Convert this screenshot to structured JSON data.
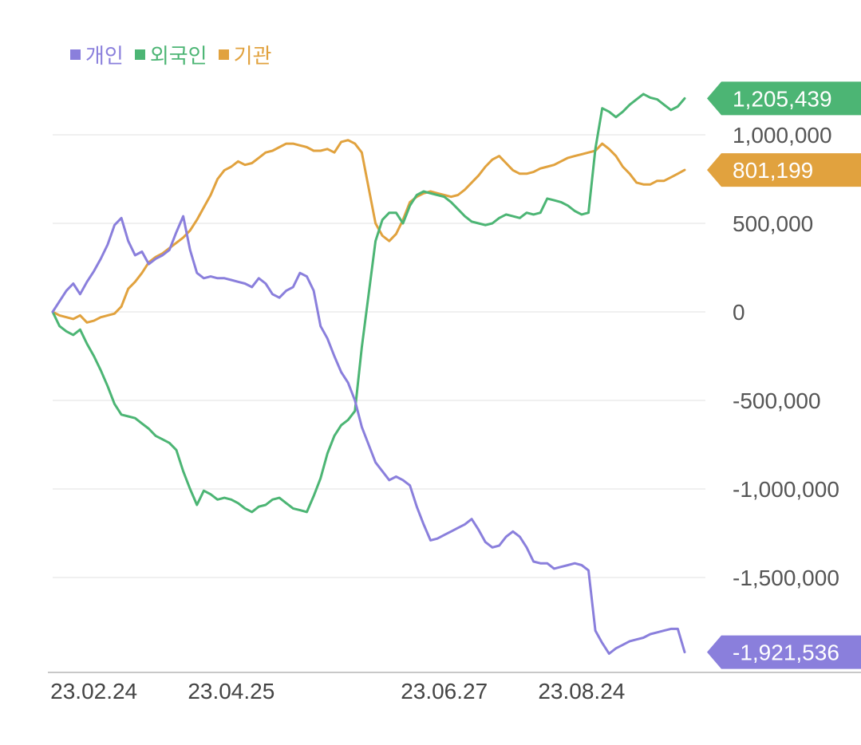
{
  "legend": [
    {
      "label": "개인",
      "color": "#8a7fdc"
    },
    {
      "label": "외국인",
      "color": "#4cb574"
    },
    {
      "label": "기관",
      "color": "#e1a23e"
    }
  ],
  "chart_data": {
    "type": "line",
    "ylim": [
      -1950000,
      1300000
    ],
    "y_ticks": [
      {
        "value": 1000000,
        "label": "1,000,000"
      },
      {
        "value": 500000,
        "label": "500,000"
      },
      {
        "value": 0,
        "label": "0"
      },
      {
        "value": -500000,
        "label": "-500,000"
      },
      {
        "value": -1000000,
        "label": "-1,000,000"
      },
      {
        "value": -1500000,
        "label": "-1,500,000"
      }
    ],
    "x_ticks": [
      {
        "index": 6,
        "label": "23.02.24"
      },
      {
        "index": 26,
        "label": "23.04.25"
      },
      {
        "index": 57,
        "label": "23.06.27"
      },
      {
        "index": 77,
        "label": "23.08.24"
      }
    ],
    "x_count": 93,
    "grid": true,
    "legend_position": "top-left",
    "series": [
      {
        "name": "개인",
        "color": "#8a7fdc",
        "last_label": "-1,921,536",
        "values": [
          0,
          60000,
          120000,
          160000,
          100000,
          170000,
          230000,
          300000,
          380000,
          490000,
          530000,
          400000,
          320000,
          340000,
          270000,
          300000,
          320000,
          350000,
          450000,
          540000,
          350000,
          220000,
          190000,
          200000,
          190000,
          190000,
          180000,
          170000,
          160000,
          140000,
          190000,
          160000,
          100000,
          80000,
          120000,
          140000,
          220000,
          200000,
          120000,
          -80000,
          -150000,
          -250000,
          -340000,
          -400000,
          -500000,
          -650000,
          -750000,
          -850000,
          -900000,
          -950000,
          -930000,
          -950000,
          -980000,
          -1100000,
          -1200000,
          -1290000,
          -1280000,
          -1260000,
          -1240000,
          -1220000,
          -1200000,
          -1170000,
          -1230000,
          -1300000,
          -1330000,
          -1320000,
          -1270000,
          -1240000,
          -1270000,
          -1330000,
          -1410000,
          -1420000,
          -1420000,
          -1450000,
          -1440000,
          -1430000,
          -1420000,
          -1430000,
          -1460000,
          -1800000,
          -1870000,
          -1930000,
          -1900000,
          -1880000,
          -1860000,
          -1850000,
          -1840000,
          -1820000,
          -1810000,
          -1800000,
          -1790000,
          -1790000,
          -1921536
        ]
      },
      {
        "name": "외국인",
        "color": "#4cb574",
        "last_label": "1,205,439",
        "values": [
          0,
          -80000,
          -110000,
          -130000,
          -100000,
          -180000,
          -250000,
          -330000,
          -420000,
          -520000,
          -580000,
          -590000,
          -600000,
          -630000,
          -660000,
          -700000,
          -720000,
          -740000,
          -780000,
          -900000,
          -1000000,
          -1090000,
          -1010000,
          -1030000,
          -1060000,
          -1050000,
          -1060000,
          -1080000,
          -1110000,
          -1130000,
          -1100000,
          -1090000,
          -1060000,
          -1050000,
          -1080000,
          -1110000,
          -1120000,
          -1130000,
          -1040000,
          -940000,
          -800000,
          -700000,
          -640000,
          -610000,
          -560000,
          -200000,
          100000,
          400000,
          520000,
          560000,
          560000,
          500000,
          600000,
          660000,
          680000,
          670000,
          660000,
          650000,
          620000,
          580000,
          540000,
          510000,
          500000,
          490000,
          500000,
          530000,
          550000,
          540000,
          530000,
          560000,
          550000,
          560000,
          640000,
          630000,
          620000,
          600000,
          570000,
          550000,
          560000,
          920000,
          1150000,
          1130000,
          1100000,
          1130000,
          1170000,
          1200000,
          1230000,
          1210000,
          1200000,
          1170000,
          1140000,
          1160000,
          1205439
        ]
      },
      {
        "name": "기관",
        "color": "#e1a23e",
        "last_label": "801,199",
        "values": [
          0,
          -20000,
          -30000,
          -40000,
          -20000,
          -60000,
          -50000,
          -30000,
          -20000,
          -10000,
          30000,
          130000,
          170000,
          220000,
          280000,
          310000,
          330000,
          360000,
          390000,
          420000,
          460000,
          520000,
          590000,
          660000,
          750000,
          800000,
          820000,
          850000,
          830000,
          840000,
          870000,
          900000,
          910000,
          930000,
          950000,
          950000,
          940000,
          930000,
          910000,
          910000,
          920000,
          900000,
          960000,
          970000,
          950000,
          900000,
          700000,
          500000,
          430000,
          400000,
          440000,
          520000,
          620000,
          650000,
          670000,
          680000,
          670000,
          660000,
          650000,
          660000,
          690000,
          730000,
          770000,
          820000,
          860000,
          880000,
          840000,
          800000,
          780000,
          780000,
          790000,
          810000,
          820000,
          830000,
          850000,
          870000,
          880000,
          890000,
          900000,
          910000,
          950000,
          920000,
          880000,
          820000,
          780000,
          730000,
          720000,
          720000,
          740000,
          740000,
          760000,
          780000,
          801199
        ]
      }
    ]
  }
}
